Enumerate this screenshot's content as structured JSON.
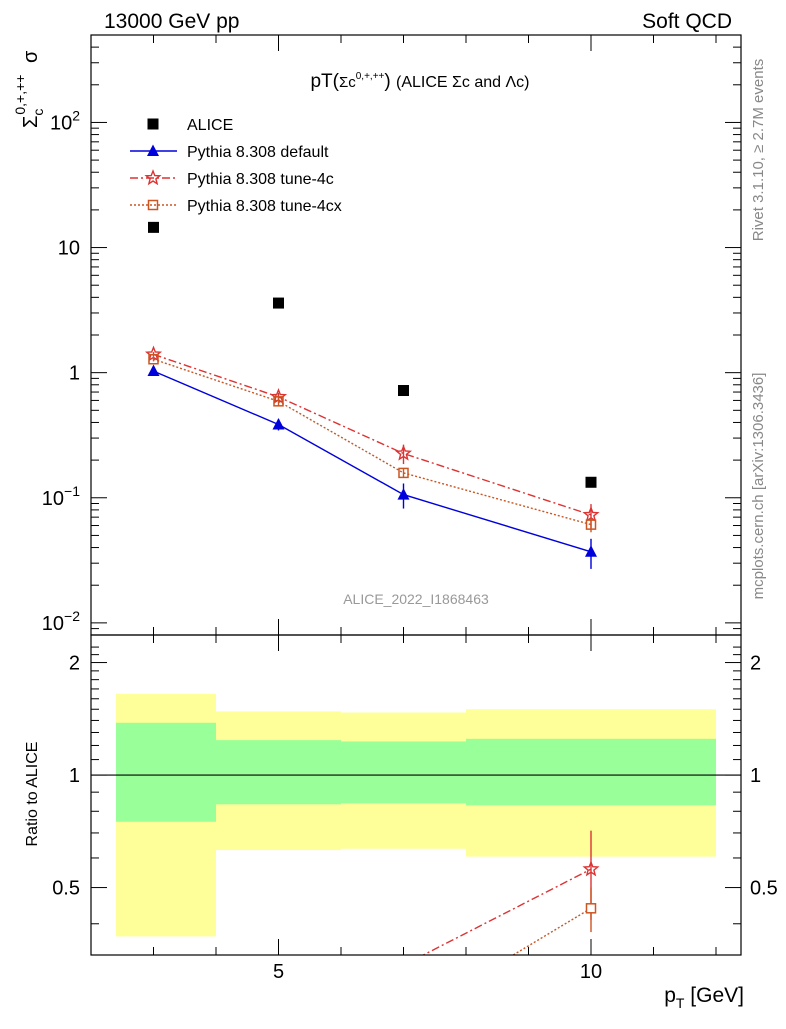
{
  "header": {
    "left": "13000 GeV pp",
    "right": "Soft QCD"
  },
  "side_labels": {
    "rivet": "Rivet 3.1.10, ≥ 2.7M events",
    "mcplots": "mcplots.cern.ch [arXiv:1306.3436]"
  },
  "colors": {
    "alice": "#000000",
    "default": "#0000dd",
    "tune4c": "#dd3333",
    "tune4cx": "#cc5522",
    "band_inner": "#99ff99",
    "band_outer": "#ffff99"
  },
  "chart_data": [
    {
      "type": "scatter",
      "title": "pT(Σc0,+,++) (ALICE Σc and Λc)",
      "title_parts": {
        "main": "pT(",
        "sigma": "Σc",
        "sup": "0,+,++",
        "close": ")",
        "rest": "(ALICE Σc and Λc)"
      },
      "ylabel": {
        "symbol": "Σ",
        "sub": "c",
        "sup": "0,+,++",
        "tail": "σ"
      },
      "yscale": "log",
      "ylim": [
        0.008,
        500
      ],
      "xlim": [
        2,
        12.4
      ],
      "yticks": [
        {
          "value": 100,
          "base": "10",
          "exp": "2"
        },
        {
          "value": 10,
          "base": "10",
          "exp": ""
        },
        {
          "value": 1,
          "base": "1",
          "exp": ""
        },
        {
          "value": 0.1,
          "base": "10",
          "exp": "−1"
        },
        {
          "value": 0.01,
          "base": "10",
          "exp": "−2"
        }
      ],
      "watermark": "ALICE_2022_I1868463",
      "series": [
        {
          "name": "ALICE",
          "marker": "square",
          "line": "none",
          "x": [
            3,
            5,
            7,
            10
          ],
          "y": [
            14.5,
            3.6,
            0.72,
            0.133
          ],
          "err": [
            0,
            0,
            0,
            0
          ]
        },
        {
          "name": "Pythia 8.308 default",
          "marker": "triangle",
          "line": "solid",
          "x": [
            3,
            5,
            7,
            10
          ],
          "y": [
            1.03,
            0.385,
            0.106,
            0.037
          ],
          "err": [
            0.05,
            0.04,
            0.024,
            0.01
          ]
        },
        {
          "name": "Pythia 8.308 tune-4c",
          "marker": "star",
          "line": "dashdot",
          "x": [
            3,
            5,
            7,
            10
          ],
          "y": [
            1.4,
            0.64,
            0.226,
            0.073
          ],
          "err": [
            0.06,
            0.05,
            0.04,
            0.016
          ]
        },
        {
          "name": "Pythia 8.308 tune-4cx",
          "marker": "opensquare",
          "line": "dotted",
          "x": [
            3,
            5,
            7,
            10
          ],
          "y": [
            1.28,
            0.59,
            0.158,
            0.061
          ],
          "err": [
            0.05,
            0.045,
            0.012,
            0.008
          ]
        }
      ]
    },
    {
      "type": "scatter",
      "ylabel": "Ratio to ALICE",
      "xlabel": {
        "main": "p",
        "sub": "T",
        "unit": "[GeV]"
      },
      "xlim": [
        2,
        12.4
      ],
      "ylim": [
        0.33,
        2.37
      ],
      "yscale": "log",
      "yticks": [
        "2",
        "1",
        "0.5"
      ],
      "xticks": [
        "5",
        "10"
      ],
      "bands": [
        {
          "x": [
            2.4,
            4.0
          ],
          "inner": [
            0.75,
            1.38
          ],
          "outer": [
            0.37,
            1.65
          ]
        },
        {
          "x": [
            4.0,
            6.0
          ],
          "inner": [
            0.835,
            1.24
          ],
          "outer": [
            0.63,
            1.48
          ]
        },
        {
          "x": [
            6.0,
            8.0
          ],
          "inner": [
            0.84,
            1.23
          ],
          "outer": [
            0.635,
            1.47
          ]
        },
        {
          "x": [
            8.0,
            12.0
          ],
          "inner": [
            0.83,
            1.25
          ],
          "outer": [
            0.605,
            1.5
          ]
        }
      ],
      "series": [
        {
          "name": "Pythia 8.308 tune-4c",
          "x": [
            10
          ],
          "y": [
            0.56
          ],
          "err": [
            0.15
          ]
        },
        {
          "name": "Pythia 8.308 tune-4cx",
          "x": [
            10
          ],
          "y": [
            0.44
          ],
          "err": [
            0.06
          ]
        }
      ]
    }
  ]
}
